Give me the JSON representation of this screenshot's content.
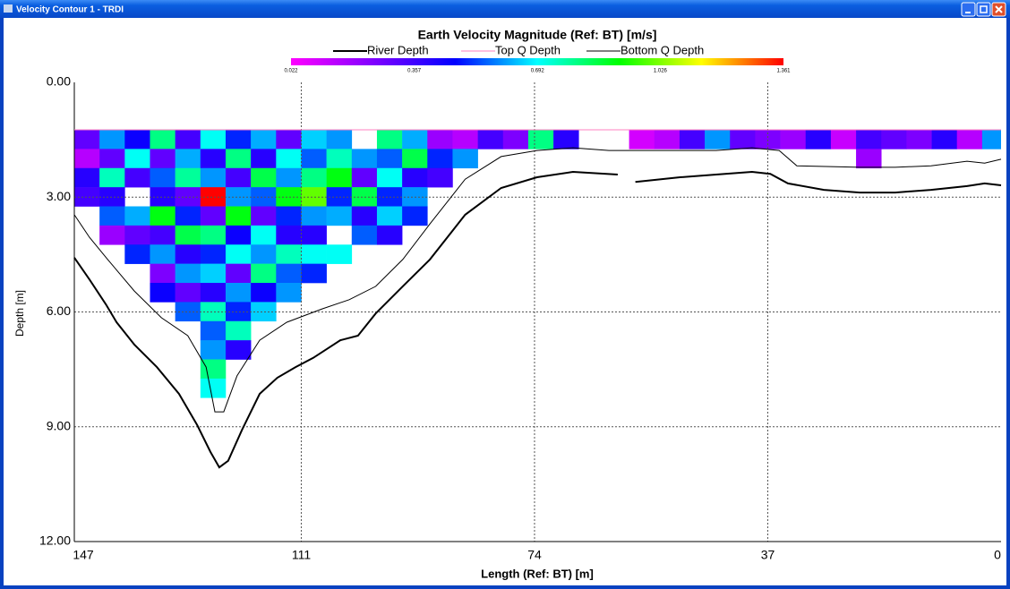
{
  "window": {
    "title": "Velocity Contour 1 - TRDI"
  },
  "chart_data": {
    "type": "heatmap",
    "title": "Earth Velocity Magnitude (Ref: BT) [m/s]",
    "xlabel": "Length (Ref: BT) [m]",
    "ylabel": "Depth [m]",
    "xlim": [
      147,
      0
    ],
    "ylim": [
      0,
      12
    ],
    "xticks": [
      147,
      111,
      74,
      37,
      0
    ],
    "yticks": [
      {
        "value": 0,
        "label": "0.00"
      },
      {
        "value": 3,
        "label": "3.00"
      },
      {
        "value": 6,
        "label": "6.00"
      },
      {
        "value": 9,
        "label": "9.00"
      },
      {
        "value": 12,
        "label": "12.00"
      }
    ],
    "grid": true,
    "clim": [
      0.022,
      1.361
    ],
    "colorbar_ticks": [
      {
        "value": 0.022,
        "label": "0.022"
      },
      {
        "value": 0.357,
        "label": "0.357"
      },
      {
        "value": 0.692,
        "label": "0.692"
      },
      {
        "value": 1.026,
        "label": "1.026"
      },
      {
        "value": 1.361,
        "label": "1.361"
      }
    ],
    "colormap": [
      "#ff00ff",
      "#8000ff",
      "#0000ff",
      "#00ffff",
      "#00ff00",
      "#ffff00",
      "#ff0000"
    ],
    "x": [
      145,
      141,
      137,
      133,
      129,
      125,
      121,
      117,
      113,
      109,
      105,
      101,
      97,
      93,
      89,
      85,
      81,
      77,
      73,
      69,
      65,
      61,
      57,
      53,
      49,
      45,
      41,
      37,
      33,
      29,
      25,
      21,
      17,
      13,
      9,
      5,
      1
    ],
    "y": [
      1.49,
      1.99,
      2.49,
      2.99,
      3.49,
      3.99,
      4.49,
      4.99,
      5.49,
      5.99,
      6.49,
      6.99,
      7.49,
      7.99
    ],
    "z": [
      [
        0.3,
        0.15,
        0.4,
        0.35
      ],
      [
        0.6,
        0.3,
        0.75,
        0.4,
        0.55,
        0.2
      ],
      [
        0.45,
        0.7,
        0.35,
        null,
        0.62,
        0.3,
        0.5
      ],
      [
        0.8,
        0.3,
        0.55,
        0.4,
        0.9,
        0.35,
        0.6,
        0.25,
        0.45
      ],
      [
        0.35,
        0.62,
        0.78,
        0.3,
        0.5,
        0.85,
        0.4,
        0.6,
        0.3,
        0.55
      ],
      [
        0.7,
        0.4,
        0.6,
        1.36,
        0.3,
        0.8,
        0.5,
        0.65,
        0.4,
        0.75,
        0.55,
        0.6,
        0.8,
        0.7
      ],
      [
        0.5,
        0.8,
        0.35,
        0.6,
        0.9,
        0.45,
        0.7,
        0.3,
        0.6,
        0.5,
        0.75,
        0.4
      ],
      [
        0.62,
        0.4,
        0.85,
        0.55,
        0.3,
        0.7,
        0.6,
        0.8,
        0.45,
        0.65
      ],
      [
        0.3,
        0.7,
        0.6,
        0.9,
        0.5,
        0.4,
        0.75,
        0.55,
        0.6
      ],
      [
        0.65,
        0.55,
        0.8,
        1.0,
        0.6,
        0.4,
        0.7,
        0.5
      ],
      [
        0.6,
        0.75,
        0.9,
        0.5,
        0.62,
        null,
        0.7
      ],
      [
        null,
        0.6,
        0.3,
        0.85,
        0.4,
        0.55
      ],
      [
        0.8,
        0.55,
        0.7,
        0.5,
        0.65,
        0.4
      ],
      [
        0.62,
        0.85,
        0.4,
        0.6,
        0.5
      ],
      [
        0.2,
        0.5,
        0.35
      ],
      [
        0.15,
        0.6
      ],
      [
        0.35
      ],
      [
        0.25
      ],
      [
        0.8
      ],
      [
        0.4
      ],
      [],
      [],
      [
        0.1
      ],
      [
        0.15
      ],
      [
        0.35
      ],
      [
        0.6
      ],
      [
        0.3
      ],
      [
        0.25
      ],
      [
        0.2
      ],
      [
        0.4
      ],
      [
        0.12
      ],
      [
        0.35,
        0.2
      ],
      [
        0.3
      ],
      [
        0.25
      ],
      [
        0.4
      ],
      [
        0.15
      ],
      [
        0.6
      ]
    ],
    "series": [
      {
        "name": "River Depth",
        "color": "#000000",
        "width": 2,
        "x": [
          147,
          144.6,
          142.0,
          140.3,
          137.5,
          133.9,
          130.4,
          127.5,
          125.4,
          124.0,
          122.6,
          120.4,
          117.6,
          114.8,
          111.9,
          109.1,
          104.8,
          102.0,
          99.2,
          94.9,
          90.6,
          85.0,
          79.3,
          73.6,
          67.9,
          60.8,
          null,
          58.0,
          50.9,
          45.2,
          39.5,
          36.6,
          33.8,
          28.1,
          22.4,
          16.8,
          11.1,
          5.4,
          2.6,
          0
        ],
        "y": [
          4.58,
          5.15,
          5.8,
          6.27,
          6.85,
          7.44,
          8.14,
          8.96,
          9.66,
          10.06,
          9.89,
          9.08,
          8.14,
          7.72,
          7.44,
          7.2,
          6.74,
          6.62,
          6.04,
          5.33,
          4.63,
          3.46,
          2.76,
          2.48,
          2.34,
          2.41,
          null,
          2.6,
          2.48,
          2.41,
          2.34,
          2.39,
          2.64,
          2.81,
          2.88,
          2.88,
          2.81,
          2.71,
          2.64,
          2.69
        ]
      },
      {
        "name": "Top Q Depth",
        "color": "#ff80c0",
        "width": 1,
        "x": [
          147,
          0
        ],
        "y": [
          1.24,
          1.24
        ]
      },
      {
        "name": "Bottom Q Depth",
        "color": "#000000",
        "width": 1,
        "x": [
          147,
          144.6,
          141.7,
          137.5,
          133.2,
          129.0,
          126.1,
          124.7,
          123.3,
          121.2,
          117.6,
          113.3,
          107.7,
          103.4,
          99.2,
          94.9,
          90.6,
          85.0,
          79.3,
          73.6,
          67.9,
          62.2,
          56.5,
          50.9,
          45.2,
          39.5,
          35.2,
          32.4,
          22.4,
          16.8,
          11.1,
          5.4,
          2.6,
          0
        ],
        "y": [
          3.46,
          4.05,
          4.63,
          5.45,
          6.15,
          6.62,
          7.44,
          8.61,
          8.61,
          7.67,
          6.74,
          6.27,
          5.92,
          5.68,
          5.33,
          4.63,
          3.7,
          2.53,
          1.94,
          1.78,
          1.71,
          1.78,
          1.78,
          1.78,
          1.78,
          1.71,
          1.78,
          2.18,
          2.22,
          2.22,
          2.18,
          2.06,
          2.11,
          2.01
        ]
      }
    ]
  }
}
